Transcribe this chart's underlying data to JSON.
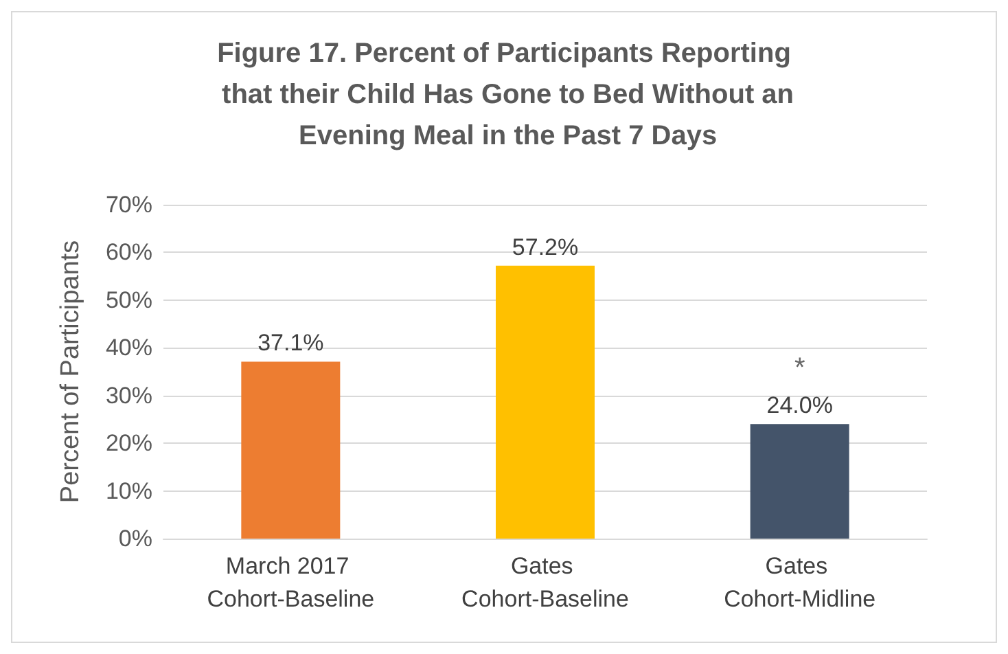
{
  "chart_data": {
    "type": "bar",
    "title": "Figure 17. Percent of Participants Reporting that their Child Has Gone to Bed Without an Evening Meal in the Past 7 Days",
    "ylabel": "Percent of Participants",
    "categories": [
      "March 2017 Cohort-Baseline",
      "Gates Cohort-Baseline",
      "Gates Cohort-Midline"
    ],
    "values": [
      37.1,
      57.2,
      24.0
    ],
    "colors": [
      "#ed7d31",
      "#ffc000",
      "#44546a"
    ],
    "value_labels": [
      "37.1%",
      "57.2%",
      "24.0%"
    ],
    "annotations": [
      {
        "text": "*",
        "x": "Gates Cohort-Midline",
        "y": 24.0
      }
    ],
    "ylim": [
      0,
      70
    ],
    "yticks": [
      {
        "value": 0,
        "label": "0%"
      },
      {
        "value": 10,
        "label": "10%"
      },
      {
        "value": 20,
        "label": "20%"
      },
      {
        "value": 30,
        "label": "30%"
      },
      {
        "value": 40,
        "label": "40%"
      },
      {
        "value": 50,
        "label": "50%"
      },
      {
        "value": 60,
        "label": "60%"
      },
      {
        "value": 70,
        "label": "70%"
      }
    ],
    "grid": true
  }
}
